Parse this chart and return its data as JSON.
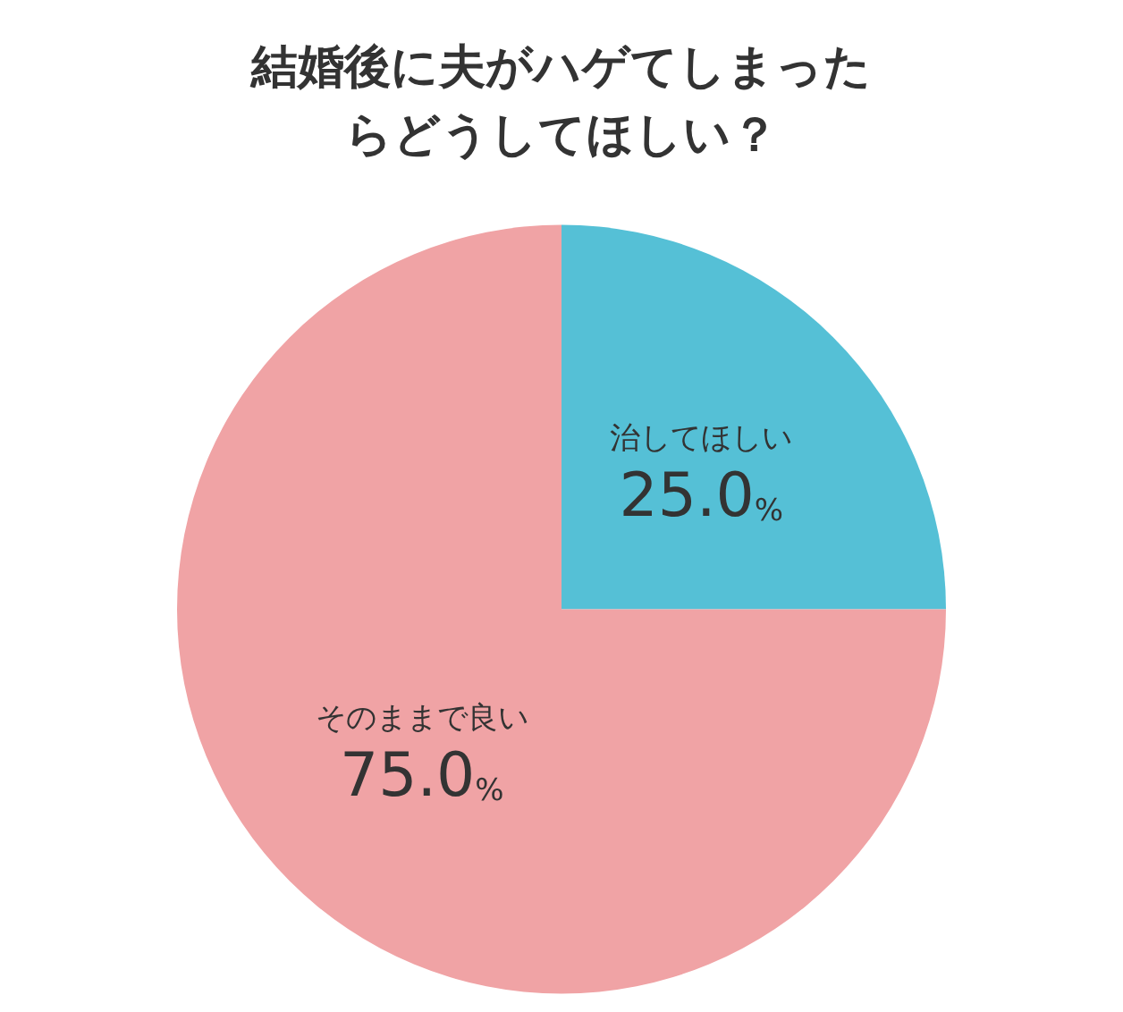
{
  "chart_data": {
    "type": "pie",
    "title": "結婚後に夫がハゲてしまったらどうしてほしい？",
    "categories": [
      "治してほしい",
      "そのままで良い"
    ],
    "values": [
      25,
      75
    ],
    "colors": [
      "#55c0d6",
      "#f0a3a5"
    ],
    "value_labels": [
      "25.0%",
      "75.0%"
    ]
  }
}
